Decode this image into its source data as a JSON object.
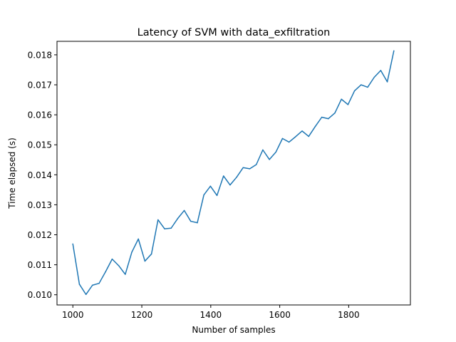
{
  "chart_data": {
    "type": "line",
    "title": "Latency of SVM with data_exfiltration",
    "xlabel": "Number of samples",
    "ylabel": "Time elapsed (s)",
    "xlim": [
      954,
      1979
    ],
    "ylim": [
      0.00966,
      0.01845
    ],
    "grid": false,
    "line_color": "#1f77b4",
    "x_ticks": [
      1000,
      1200,
      1400,
      1600,
      1800
    ],
    "x_tick_labels": [
      "1000",
      "1200",
      "1400",
      "1600",
      "1800"
    ],
    "y_ticks": [
      0.01,
      0.011,
      0.012,
      0.013,
      0.014,
      0.015,
      0.016,
      0.017,
      0.018
    ],
    "y_tick_labels": [
      "0.010",
      "0.011",
      "0.012",
      "0.013",
      "0.014",
      "0.015",
      "0.016",
      "0.017",
      "0.018"
    ],
    "series": [
      {
        "x": [
          1000,
          1019,
          1038,
          1057,
          1076,
          1095,
          1114,
          1133,
          1152,
          1171,
          1190,
          1209,
          1228,
          1247,
          1266,
          1285,
          1304,
          1323,
          1342,
          1361,
          1380,
          1399,
          1418,
          1437,
          1456,
          1475,
          1494,
          1513,
          1532,
          1551,
          1570,
          1589,
          1608,
          1627,
          1646,
          1665,
          1684,
          1703,
          1722,
          1741,
          1760,
          1779,
          1798,
          1817,
          1836,
          1855,
          1874,
          1893,
          1912,
          1931
        ],
        "values": [
          0.01169,
          0.01035,
          0.01001,
          0.01032,
          0.01038,
          0.01077,
          0.01119,
          0.01097,
          0.01068,
          0.01142,
          0.01186,
          0.01112,
          0.01136,
          0.0125,
          0.0122,
          0.01222,
          0.01254,
          0.01281,
          0.01245,
          0.0124,
          0.01333,
          0.01362,
          0.01331,
          0.01396,
          0.01366,
          0.01392,
          0.01424,
          0.0142,
          0.01434,
          0.01483,
          0.01451,
          0.01476,
          0.01521,
          0.01509,
          0.01527,
          0.01546,
          0.01528,
          0.01561,
          0.01592,
          0.01587,
          0.01606,
          0.01652,
          0.01634,
          0.0168,
          0.017,
          0.01692,
          0.01725,
          0.01748,
          0.0171,
          0.01813
        ]
      }
    ]
  }
}
